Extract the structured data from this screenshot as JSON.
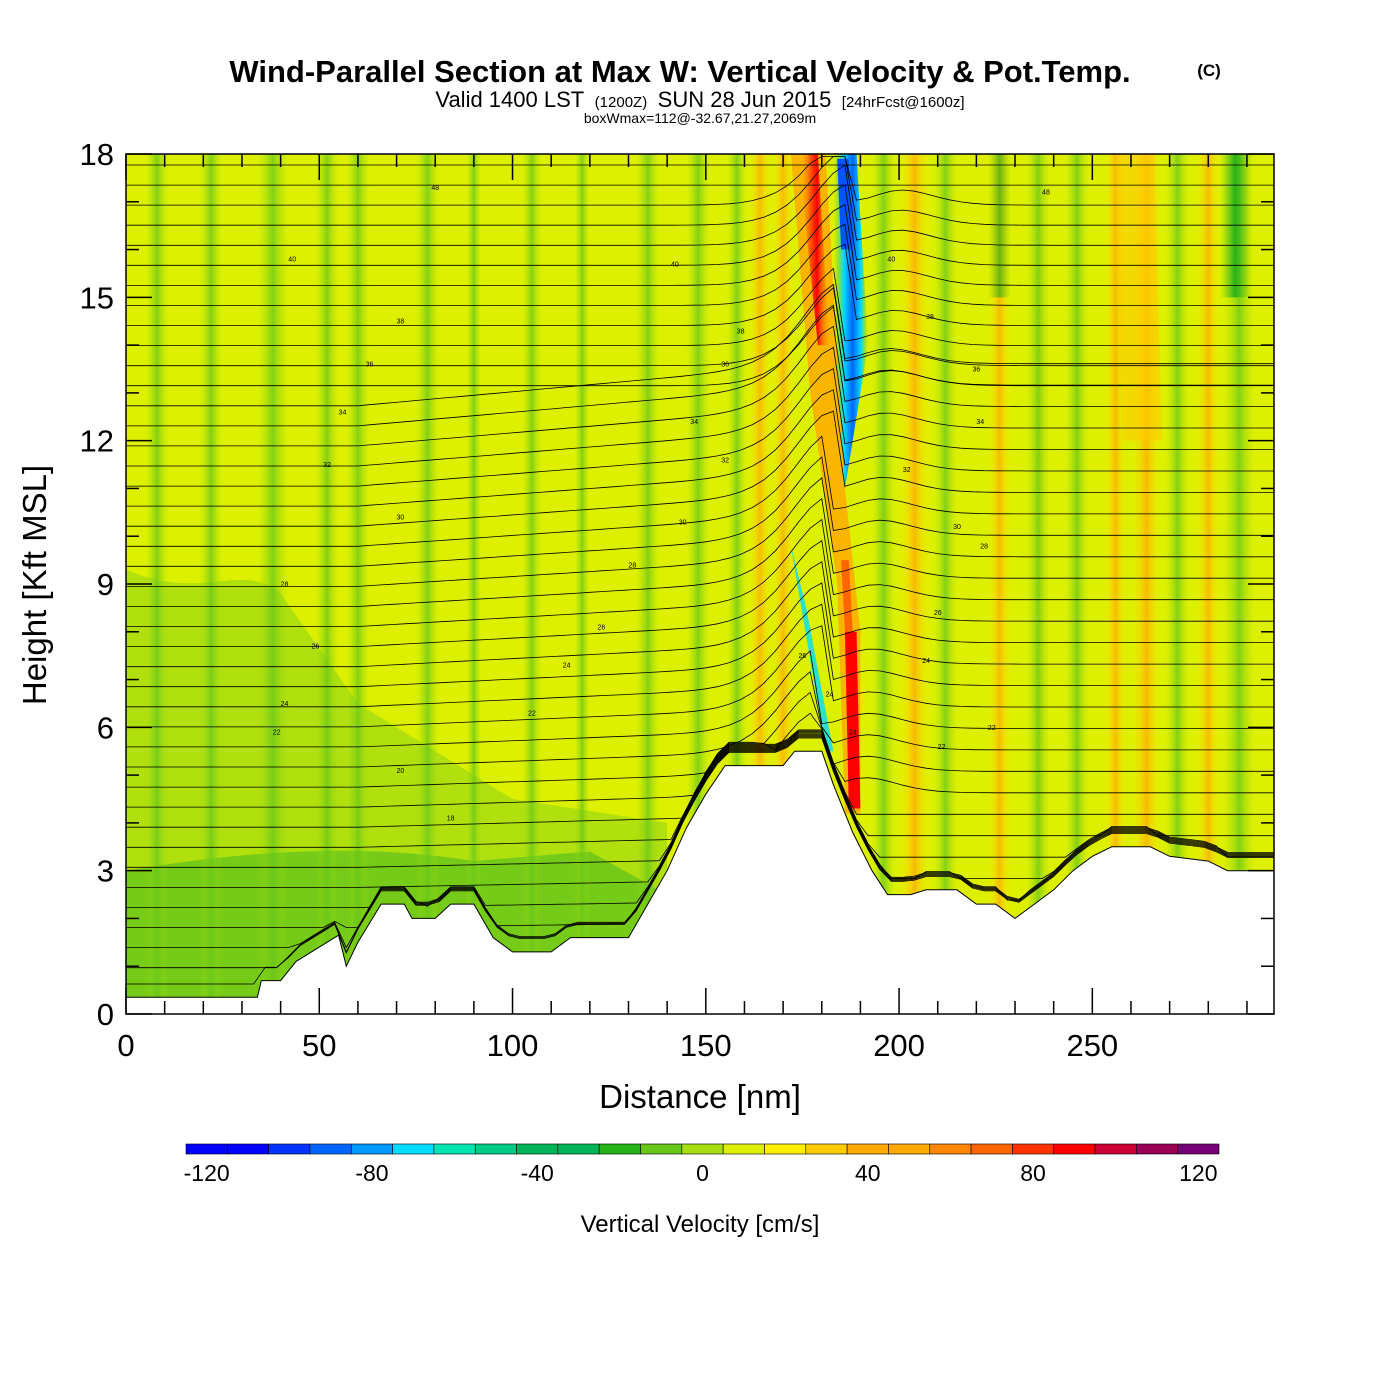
{
  "title": "Wind-Parallel Section at Max W: Vertical Velocity & Pot.Temp.",
  "copyright": "(C)",
  "subtitle_valid": "Valid 1400 LST",
  "subtitle_zulu": "(1200Z)",
  "subtitle_date": "SUN 28 Jun 2015",
  "subtitle_fcst": "[24hrFcst@1600z]",
  "subtitle_box": "boxWmax=112@-32.67,21.27,2069m",
  "chart_data": {
    "type": "heatmap",
    "xlabel": "Distance [nm]",
    "ylabel": "Height [Kft MSL]",
    "xlim": [
      0,
      297
    ],
    "ylim": [
      0,
      18
    ],
    "x_ticks": [
      0,
      50,
      100,
      150,
      200,
      250
    ],
    "y_ticks": [
      0,
      3,
      6,
      9,
      12,
      15,
      18
    ],
    "colorbar": {
      "label": "Vertical Velocity [cm/s]",
      "min": -125,
      "max": 125,
      "step": 10,
      "tick_values": [
        -120,
        -80,
        -40,
        0,
        40,
        80,
        120
      ],
      "colors": [
        "#0000ff",
        "#0033ff",
        "#0066ff",
        "#0099ff",
        "#00ddff",
        "#00e6b3",
        "#00cc88",
        "#00b359",
        "#26b31a",
        "#66c61a",
        "#a8dd10",
        "#ddf000",
        "#ffee00",
        "#ffcc00",
        "#ffaa00",
        "#ff8800",
        "#ff6600",
        "#ff3300",
        "#ff0000",
        "#cc0033",
        "#990055",
        "#770077"
      ]
    },
    "terrain_kft": [
      [
        0,
        0.35
      ],
      [
        10,
        0.35
      ],
      [
        20,
        0.35
      ],
      [
        30,
        0.35
      ],
      [
        34,
        0.35
      ],
      [
        35,
        0.7
      ],
      [
        40,
        0.7
      ],
      [
        44,
        1.1
      ],
      [
        50,
        1.4
      ],
      [
        55,
        1.65
      ],
      [
        57,
        1.0
      ],
      [
        60,
        1.5
      ],
      [
        63,
        1.9
      ],
      [
        66,
        2.3
      ],
      [
        72,
        2.3
      ],
      [
        74,
        2.0
      ],
      [
        80,
        2.0
      ],
      [
        84,
        2.3
      ],
      [
        88,
        2.3
      ],
      [
        90,
        2.3
      ],
      [
        95,
        1.6
      ],
      [
        100,
        1.3
      ],
      [
        110,
        1.3
      ],
      [
        115,
        1.6
      ],
      [
        125,
        1.6
      ],
      [
        130,
        1.6
      ],
      [
        135,
        2.3
      ],
      [
        140,
        3.0
      ],
      [
        145,
        3.9
      ],
      [
        150,
        4.6
      ],
      [
        155,
        5.2
      ],
      [
        170,
        5.2
      ],
      [
        173,
        5.5
      ],
      [
        180,
        5.5
      ],
      [
        183,
        4.8
      ],
      [
        188,
        3.8
      ],
      [
        193,
        3.0
      ],
      [
        197,
        2.5
      ],
      [
        200,
        2.5
      ],
      [
        203,
        2.5
      ],
      [
        207,
        2.6
      ],
      [
        215,
        2.6
      ],
      [
        220,
        2.3
      ],
      [
        225,
        2.3
      ],
      [
        230,
        2.0
      ],
      [
        235,
        2.3
      ],
      [
        240,
        2.6
      ],
      [
        245,
        3.0
      ],
      [
        250,
        3.3
      ],
      [
        255,
        3.5
      ],
      [
        260,
        3.5
      ],
      [
        265,
        3.5
      ],
      [
        270,
        3.3
      ],
      [
        280,
        3.2
      ],
      [
        285,
        3.0
      ],
      [
        297,
        3.0
      ]
    ],
    "updraft_max_cm_s": 112,
    "theta_contour_labels": [
      {
        "text": "48",
        "x": 80,
        "y": 17.3
      },
      {
        "text": "48",
        "x": 238,
        "y": 17.2
      },
      {
        "text": "40",
        "x": 43,
        "y": 15.8
      },
      {
        "text": "40",
        "x": 142,
        "y": 15.7
      },
      {
        "text": "40",
        "x": 198,
        "y": 15.8
      },
      {
        "text": "38",
        "x": 71,
        "y": 14.5
      },
      {
        "text": "38",
        "x": 159,
        "y": 14.3
      },
      {
        "text": "38",
        "x": 208,
        "y": 14.6
      },
      {
        "text": "36",
        "x": 63,
        "y": 13.6
      },
      {
        "text": "36",
        "x": 155,
        "y": 13.6
      },
      {
        "text": "36",
        "x": 220,
        "y": 13.5
      },
      {
        "text": "34",
        "x": 56,
        "y": 12.6
      },
      {
        "text": "34",
        "x": 147,
        "y": 12.4
      },
      {
        "text": "34",
        "x": 221,
        "y": 12.4
      },
      {
        "text": "32",
        "x": 52,
        "y": 11.5
      },
      {
        "text": "32",
        "x": 155,
        "y": 11.6
      },
      {
        "text": "32",
        "x": 202,
        "y": 11.4
      },
      {
        "text": "30",
        "x": 71,
        "y": 10.4
      },
      {
        "text": "30",
        "x": 144,
        "y": 10.3
      },
      {
        "text": "30",
        "x": 215,
        "y": 10.2
      },
      {
        "text": "28",
        "x": 41,
        "y": 9.0
      },
      {
        "text": "28",
        "x": 131,
        "y": 9.4
      },
      {
        "text": "28",
        "x": 222,
        "y": 9.8
      },
      {
        "text": "26",
        "x": 49,
        "y": 7.7
      },
      {
        "text": "26",
        "x": 123,
        "y": 8.1
      },
      {
        "text": "26",
        "x": 175,
        "y": 7.5
      },
      {
        "text": "26",
        "x": 210,
        "y": 8.4
      },
      {
        "text": "24",
        "x": 41,
        "y": 6.5
      },
      {
        "text": "24",
        "x": 114,
        "y": 7.3
      },
      {
        "text": "24",
        "x": 182,
        "y": 6.7
      },
      {
        "text": "24",
        "x": 188,
        "y": 5.9
      },
      {
        "text": "24",
        "x": 207,
        "y": 7.4
      },
      {
        "text": "22",
        "x": 39,
        "y": 5.9
      },
      {
        "text": "22",
        "x": 105,
        "y": 6.3
      },
      {
        "text": "22",
        "x": 224,
        "y": 6.0
      },
      {
        "text": "22",
        "x": 211,
        "y": 5.6
      },
      {
        "text": "20",
        "x": 71,
        "y": 5.1
      },
      {
        "text": "18",
        "x": 84,
        "y": 4.1
      }
    ]
  }
}
